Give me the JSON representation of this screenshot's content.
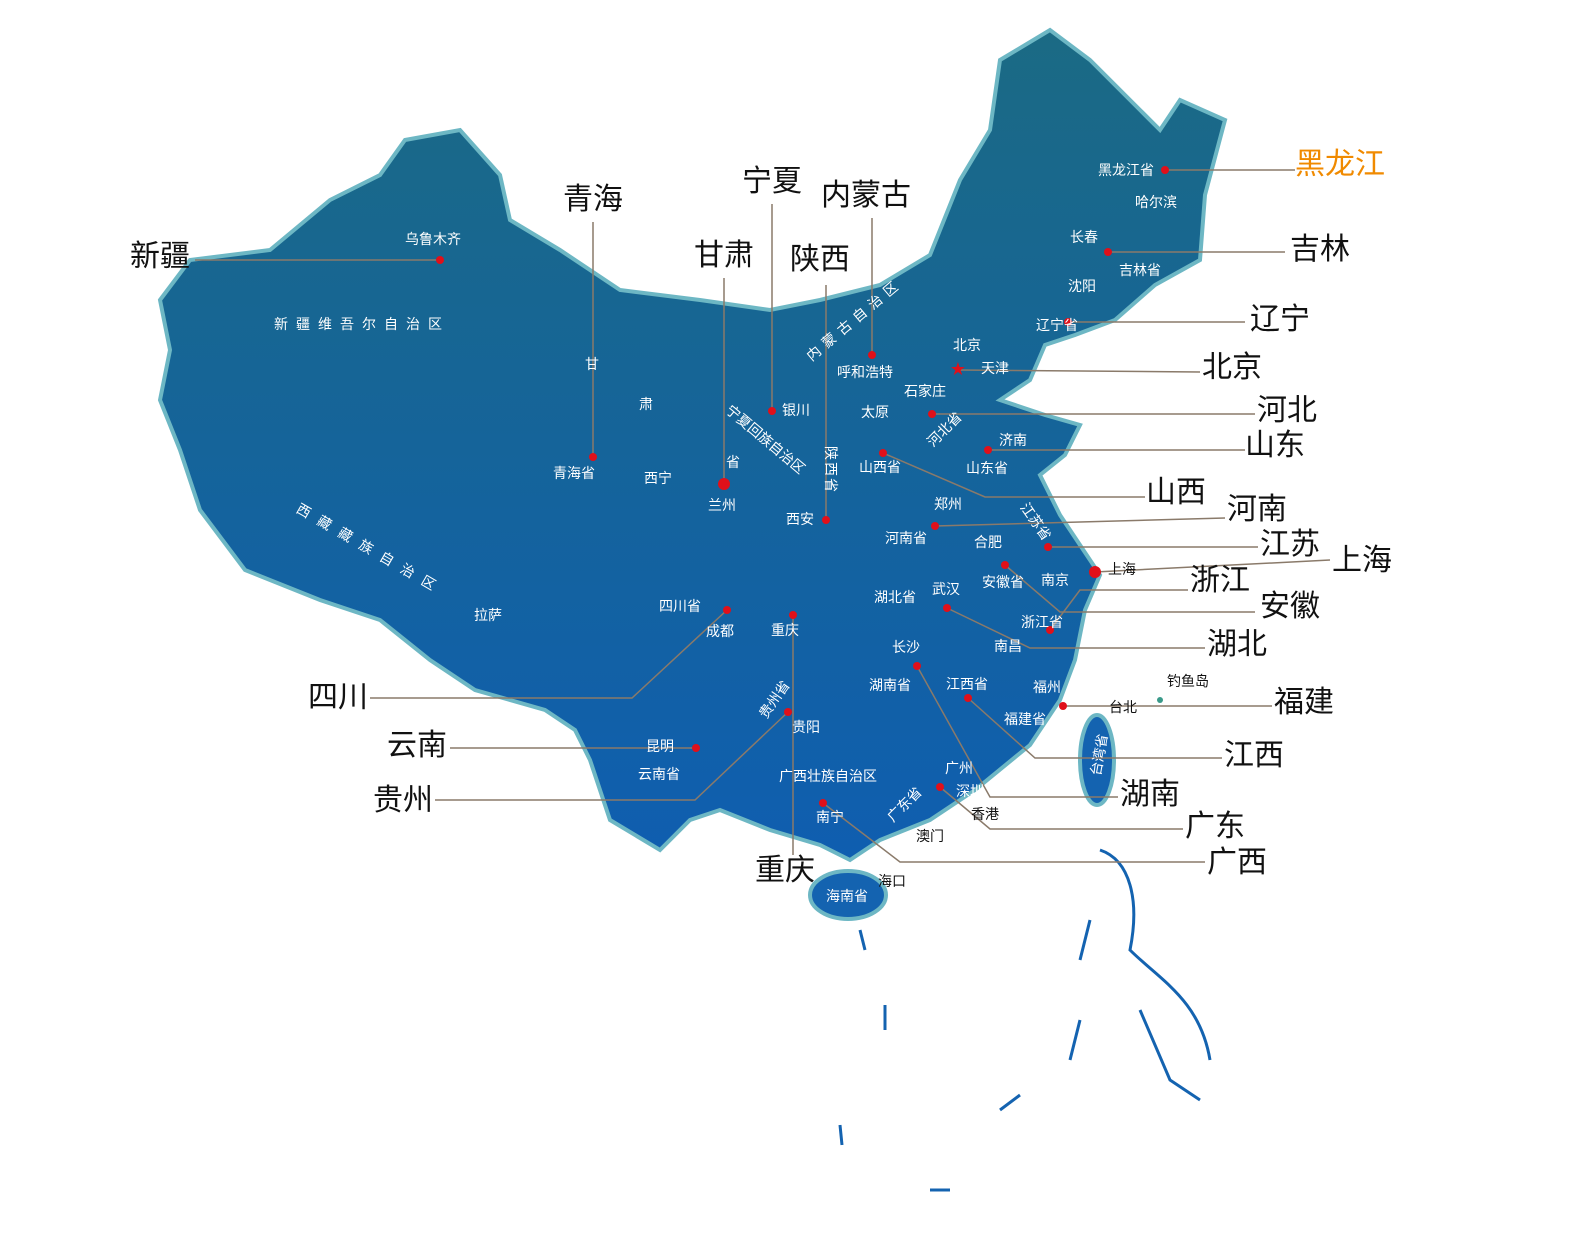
{
  "callouts": [
    "黑龙江",
    "吉林",
    "辽宁",
    "北京",
    "河北",
    "山东",
    "山西",
    "河南",
    "江苏",
    "上海",
    "浙江",
    "安徽",
    "湖北",
    "福建",
    "江西",
    "湖南",
    "广东",
    "广西",
    "重庆",
    "贵州",
    "云南",
    "四川",
    "新疆",
    "青海",
    "甘肃",
    "宁夏",
    "内蒙古",
    "陕西"
  ],
  "labels": [
    "乌鲁木齐",
    "新疆维吾尔自治区",
    "西藏藏族自治区",
    "拉萨",
    "青海省",
    "西宁",
    "甘",
    "肃",
    "省",
    "兰州",
    "宁夏回族自治区",
    "银川",
    "陕西省",
    "西安",
    "内蒙古自治区",
    "呼和浩特",
    "太原",
    "石家庄",
    "河北省",
    "北京",
    "天津",
    "山西省",
    "济南",
    "山东省",
    "郑州",
    "河南省",
    "江苏省",
    "合肥",
    "安徽省",
    "南京",
    "上海",
    "湖北省",
    "武汉",
    "浙江省",
    "南昌",
    "四川省",
    "成都",
    "重庆",
    "长沙",
    "湖南省",
    "江西省",
    "福州",
    "福建省",
    "台北",
    "钓鱼岛",
    "台湾省",
    "贵州省",
    "贵阳",
    "昆明",
    "云南省",
    "广西壮族自治区",
    "广州",
    "深圳",
    "广东省",
    "香港",
    "南宁",
    "澳门",
    "海口",
    "海南省",
    "黑龙江省",
    "哈尔滨",
    "长春",
    "吉林省",
    "沈阳",
    "辽宁省"
  ]
}
